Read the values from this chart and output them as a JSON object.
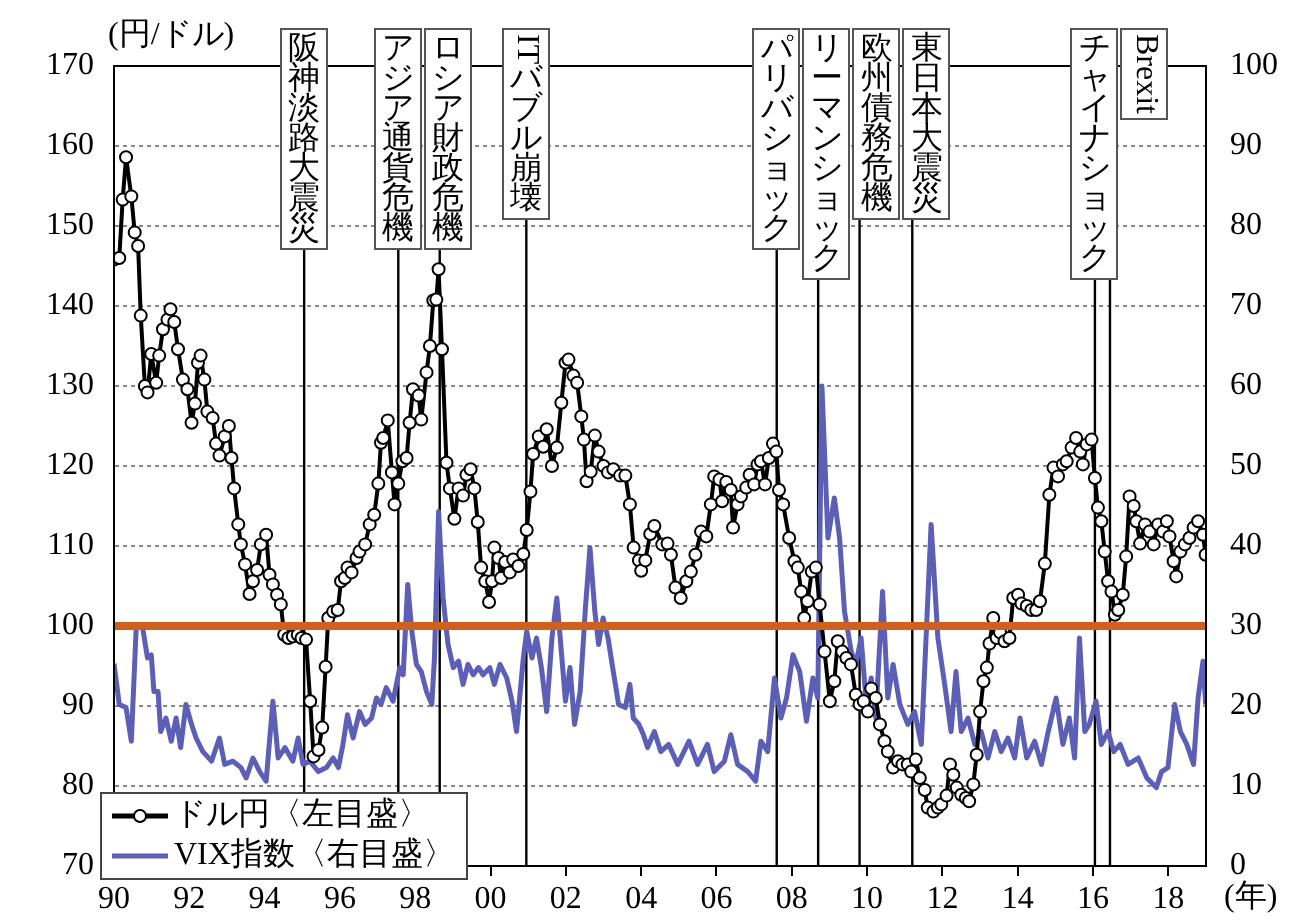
{
  "chart_data": {
    "type": "line",
    "xlabel": "(年)",
    "ylabel": "(円/ドル)",
    "xlim": [
      1990,
      2019
    ],
    "xticks": [
      {
        "value": 1990,
        "label": "90"
      },
      {
        "value": 1992,
        "label": "92"
      },
      {
        "value": 1994,
        "label": "94"
      },
      {
        "value": 1996,
        "label": "96"
      },
      {
        "value": 1998,
        "label": "98"
      },
      {
        "value": 2000,
        "label": "00"
      },
      {
        "value": 2002,
        "label": "02"
      },
      {
        "value": 2004,
        "label": "04"
      },
      {
        "value": 2006,
        "label": "06"
      },
      {
        "value": 2008,
        "label": "08"
      },
      {
        "value": 2010,
        "label": "10"
      },
      {
        "value": 2012,
        "label": "12"
      },
      {
        "value": 2014,
        "label": "14"
      },
      {
        "value": 2016,
        "label": "16"
      },
      {
        "value": 2018,
        "label": "18"
      }
    ],
    "ylim": [
      70,
      170
    ],
    "yticks": [
      70,
      80,
      90,
      100,
      110,
      120,
      130,
      140,
      150,
      160,
      170
    ],
    "y2lim": [
      0,
      100
    ],
    "y2ticks": [
      0,
      10,
      20,
      30,
      40,
      50,
      60,
      70,
      80,
      90,
      100
    ],
    "grid": "y",
    "legend": "bottom left",
    "series": [
      {
        "name": "ドル円〈左目盛〉",
        "color": "#000000",
        "marker": "circle",
        "x": [
          1990.0,
          1990.14,
          1990.23,
          1990.32,
          1990.46,
          1990.55,
          1990.64,
          1990.71,
          1990.82,
          1990.89,
          1990.99,
          1991.12,
          1991.2,
          1991.3,
          1991.42,
          1991.5,
          1991.6,
          1991.7,
          1991.83,
          1991.95,
          1992.06,
          1992.15,
          1992.23,
          1992.3,
          1992.4,
          1992.48,
          1992.62,
          1992.71,
          1992.8,
          1992.94,
          1993.05,
          1993.12,
          1993.19,
          1993.3,
          1993.37,
          1993.48,
          1993.6,
          1993.69,
          1993.8,
          1993.9,
          1994.04,
          1994.13,
          1994.22,
          1994.33,
          1994.43,
          1994.52,
          1994.63,
          1994.75,
          1994.88,
          1994.98,
          1995.1,
          1995.21,
          1995.3,
          1995.43,
          1995.53,
          1995.62,
          1995.69,
          1995.82,
          1995.94,
          1996.03,
          1996.13,
          1996.2,
          1996.31,
          1996.44,
          1996.52,
          1996.67,
          1996.79,
          1996.91,
          1997.02,
          1997.09,
          1997.15,
          1997.27,
          1997.38,
          1997.45,
          1997.55,
          1997.66,
          1997.77,
          1997.85,
          1997.94,
          1998.09,
          1998.16,
          1998.3,
          1998.39,
          1998.48,
          1998.56,
          1998.62,
          1998.71,
          1998.83,
          1998.92,
          1999.04,
          1999.15,
          1999.27,
          1999.36,
          1999.47,
          1999.57,
          1999.66,
          1999.75,
          1999.86,
          1999.96,
          2000.04,
          2000.1,
          2000.21,
          2000.28,
          2000.39,
          2000.51,
          2000.6,
          2000.74,
          2000.87,
          2000.96,
          2001.06,
          2001.13,
          2001.28,
          2001.4,
          2001.49,
          2001.63,
          2001.76,
          2001.88,
          2001.99,
          2002.07,
          2002.2,
          2002.3,
          2002.41,
          2002.48,
          2002.55,
          2002.66,
          2002.77,
          2002.87,
          2003.0,
          2003.12,
          2003.26,
          2003.44,
          2003.58,
          2003.7,
          2003.8,
          2003.94,
          2004.0,
          2004.11,
          2004.24,
          2004.35,
          2004.56,
          2004.7,
          2004.79,
          2004.91,
          2005.05,
          2005.2,
          2005.32,
          2005.44,
          2005.59,
          2005.73,
          2005.85,
          2005.94,
          2006.08,
          2006.15,
          2006.26,
          2006.38,
          2006.44,
          2006.56,
          2006.65,
          2006.79,
          2006.88,
          2007.0,
          2007.09,
          2007.18,
          2007.29,
          2007.39,
          2007.5,
          2007.59,
          2007.66,
          2007.77,
          2007.93,
          2008.07,
          2008.16,
          2008.25,
          2008.33,
          2008.42,
          2008.53,
          2008.64,
          2008.74,
          2008.87,
          2009.01,
          2009.13,
          2009.22,
          2009.34,
          2009.45,
          2009.57,
          2009.7,
          2009.8,
          2009.91,
          2010.02,
          2010.11,
          2010.23,
          2010.34,
          2010.46,
          2010.55,
          2010.69,
          2010.82,
          2010.94,
          2011.08,
          2011.17,
          2011.29,
          2011.4,
          2011.53,
          2011.61,
          2011.76,
          2011.88,
          2011.97,
          2012.11,
          2012.2,
          2012.29,
          2012.38,
          2012.5,
          2012.62,
          2012.71,
          2012.82,
          2012.91,
          2013.0,
          2013.09,
          2013.18,
          2013.25,
          2013.35,
          2013.44,
          2013.53,
          2013.65,
          2013.78,
          2013.88,
          2014.01,
          2014.1,
          2014.24,
          2014.36,
          2014.49,
          2014.59,
          2014.72,
          2014.84,
          2014.95,
          2015.07,
          2015.2,
          2015.3,
          2015.43,
          2015.55,
          2015.66,
          2015.73,
          2015.83,
          2015.96,
          2016.05,
          2016.13,
          2016.22,
          2016.31,
          2016.4,
          2016.49,
          2016.58,
          2016.67,
          2016.79,
          2016.88,
          2016.97,
          2017.08,
          2017.15,
          2017.25,
          2017.38,
          2017.5,
          2017.61,
          2017.73,
          2017.86,
          2017.96,
          2018.03,
          2018.14,
          2018.21,
          2018.32,
          2018.44,
          2018.56,
          2018.67,
          2018.79,
          2018.92,
          2018.99
        ],
        "values": [
          145.8,
          146,
          153.3,
          158.6,
          153.7,
          149.2,
          147.5,
          138.8,
          130,
          129.2,
          134,
          130.4,
          133.8,
          137.1,
          138.3,
          139.6,
          138,
          134.6,
          130.8,
          129.6,
          125.4,
          127.8,
          132.9,
          133.8,
          130.8,
          126.8,
          126,
          122.8,
          121.3,
          123.7,
          125,
          121,
          117.2,
          112.7,
          110.2,
          107.7,
          104,
          105.6,
          107,
          110.2,
          111.4,
          106.4,
          105.2,
          103.9,
          102.7,
          98.9,
          98.5,
          98.7,
          98.9,
          98.5,
          98.3,
          90.6,
          83.7,
          84.5,
          87.3,
          94.9,
          101,
          101.8,
          102,
          105.6,
          106,
          107.3,
          106.7,
          108.5,
          109.3,
          110.2,
          112.7,
          113.9,
          117.8,
          122.9,
          123.5,
          125.7,
          119.2,
          115.2,
          117.8,
          120.6,
          121,
          125.4,
          129.6,
          128.8,
          125.8,
          131.7,
          135,
          140.7,
          140.8,
          144.6,
          134.6,
          120.4,
          117.2,
          113.4,
          117.2,
          116.3,
          118.9,
          119.6,
          117.2,
          113,
          107.3,
          105.6,
          103,
          105.6,
          109.8,
          108.5,
          106,
          108,
          106.7,
          108.3,
          107.5,
          109,
          112,
          116.8,
          121.5,
          123.7,
          122.4,
          124.6,
          120,
          122.3,
          127.9,
          132.9,
          133.3,
          131.3,
          130.4,
          126.2,
          123.3,
          118.1,
          119.3,
          123.8,
          121.8,
          120,
          119.2,
          119.6,
          118.8,
          118.8,
          115.2,
          109.8,
          108.2,
          106.9,
          108.2,
          111.5,
          112.5,
          110.2,
          110.3,
          108.9,
          104.8,
          103.5,
          105.6,
          106.8,
          108.9,
          111.8,
          111.2,
          115.2,
          118.7,
          118.3,
          115.6,
          118,
          117,
          112.3,
          115.2,
          116.2,
          117.3,
          118.9,
          117.7,
          120.2,
          120.6,
          117.7,
          121,
          122.8,
          121.8,
          117,
          115.2,
          111,
          108.1,
          107.3,
          104.3,
          101,
          103.1,
          106.8,
          107.3,
          102.7,
          96.8,
          90.6,
          93.1,
          98.1,
          96.8,
          96,
          95.2,
          91.4,
          90.2,
          90.6,
          89.3,
          92.2,
          91,
          87.7,
          85.6,
          84.3,
          82.3,
          83.1,
          82.7,
          82.7,
          81.8,
          83.3,
          81,
          79.5,
          77.3,
          76.8,
          77.3,
          77.7,
          78.8,
          82.7,
          81.4,
          79.8,
          78.9,
          78.5,
          78.1,
          80.2,
          83.9,
          89.3,
          93.1,
          94.8,
          97.8,
          101,
          98.5,
          99.2,
          98.1,
          98.5,
          103.5,
          103.9,
          102.8,
          102.5,
          102,
          102,
          103.1,
          107.8,
          116.4,
          119.8,
          118.7,
          120.2,
          120.6,
          122.3,
          123.5,
          121.8,
          120.2,
          122.7,
          123.3,
          118.5,
          114.8,
          113.1,
          109.3,
          105.6,
          104.3,
          101.4,
          102,
          103.9,
          108.7,
          116.2,
          115,
          113.1,
          110.3,
          112.7,
          111.8,
          110.2,
          112.7,
          111.8,
          113.1,
          111.2,
          108.1,
          106.2,
          109.3,
          110.2,
          111,
          112.3,
          113.1,
          111.4,
          108.9
        ]
      },
      {
        "name": "VIX指数〈右目盛〉",
        "color": "#5b5fb5",
        "marker": "none",
        "axis": "y2",
        "x": [
          1990.0,
          1990.14,
          1990.32,
          1990.46,
          1990.59,
          1990.76,
          1990.89,
          1990.99,
          1991.06,
          1991.17,
          1991.24,
          1991.38,
          1991.52,
          1991.65,
          1991.77,
          1991.91,
          1992.06,
          1992.18,
          1992.36,
          1992.59,
          1992.8,
          1992.94,
          1993.16,
          1993.37,
          1993.51,
          1993.69,
          1993.87,
          1994.04,
          1994.22,
          1994.36,
          1994.54,
          1994.75,
          1994.89,
          1995.02,
          1995.2,
          1995.43,
          1995.64,
          1995.82,
          1995.96,
          1996.08,
          1996.2,
          1996.35,
          1996.52,
          1996.67,
          1996.84,
          1996.97,
          1997.09,
          1997.23,
          1997.41,
          1997.59,
          1997.68,
          1997.8,
          1997.91,
          1998.03,
          1998.16,
          1998.3,
          1998.44,
          1998.51,
          1998.62,
          1998.74,
          1998.87,
          1999.01,
          1999.15,
          1999.27,
          1999.4,
          1999.54,
          1999.68,
          1999.8,
          1999.98,
          2000.1,
          2000.25,
          2000.43,
          2000.57,
          2000.69,
          2000.87,
          2000.96,
          2001.1,
          2001.22,
          2001.35,
          2001.49,
          2001.63,
          2001.76,
          2001.85,
          2001.99,
          2002.11,
          2002.23,
          2002.38,
          2002.52,
          2002.64,
          2002.77,
          2002.87,
          2002.99,
          2003.12,
          2003.26,
          2003.4,
          2003.58,
          2003.7,
          2003.79,
          2003.94,
          2004.06,
          2004.17,
          2004.35,
          2004.52,
          2004.73,
          2004.97,
          2005.27,
          2005.5,
          2005.76,
          2005.94,
          2006.21,
          2006.38,
          2006.56,
          2006.83,
          2007.04,
          2007.18,
          2007.36,
          2007.54,
          2007.71,
          2007.86,
          2008.03,
          2008.21,
          2008.39,
          2008.56,
          2008.69,
          2008.8,
          2008.96,
          2009.13,
          2009.27,
          2009.4,
          2009.58,
          2009.7,
          2009.84,
          2009.98,
          2010.11,
          2010.23,
          2010.41,
          2010.55,
          2010.69,
          2010.87,
          2011.08,
          2011.26,
          2011.44,
          2011.7,
          2011.88,
          2012.06,
          2012.23,
          2012.36,
          2012.5,
          2012.68,
          2012.86,
          2013.03,
          2013.21,
          2013.39,
          2013.56,
          2013.74,
          2013.92,
          2014.06,
          2014.24,
          2014.45,
          2014.63,
          2014.81,
          2015.02,
          2015.2,
          2015.37,
          2015.51,
          2015.64,
          2015.78,
          2015.9,
          2016.08,
          2016.22,
          2016.4,
          2016.55,
          2016.72,
          2016.93,
          2017.2,
          2017.43,
          2017.68,
          2017.82,
          2017.99,
          2018.17,
          2018.32,
          2018.49,
          2018.67,
          2018.79,
          2018.92,
          2018.99
        ],
        "values": [
          25.3,
          20.2,
          19.8,
          15.6,
          29.8,
          29.8,
          26,
          26.4,
          21.8,
          21.8,
          16.8,
          18.5,
          15.6,
          18.5,
          14.8,
          20.2,
          17.7,
          16,
          14.3,
          13.1,
          16,
          12.7,
          13.1,
          12.3,
          11,
          13.5,
          11.8,
          10.6,
          20.6,
          13.5,
          14.8,
          13.1,
          16,
          12.7,
          13.1,
          11.8,
          12.3,
          13.5,
          12.3,
          15.2,
          18.9,
          16,
          19.3,
          17.7,
          18.5,
          21,
          20.2,
          22.3,
          20.6,
          24.8,
          23.9,
          35.2,
          29.3,
          25.2,
          24.3,
          21.8,
          20.2,
          26,
          44.3,
          33.5,
          27.7,
          24.8,
          25.6,
          22.7,
          25.2,
          23.9,
          24.8,
          23.9,
          24.8,
          22.7,
          25.2,
          23.5,
          20.6,
          16.8,
          26,
          29.3,
          26,
          28.5,
          24.8,
          19.3,
          28.5,
          33.5,
          28.5,
          20.6,
          24.8,
          17.7,
          21.8,
          32.3,
          39.8,
          31.8,
          27.7,
          31,
          28.5,
          24.3,
          20.2,
          19.8,
          22.7,
          18.5,
          17.7,
          16.4,
          14.8,
          16.8,
          14.3,
          15.2,
          12.7,
          15.6,
          12.7,
          15.2,
          11.8,
          13.1,
          16.4,
          12.7,
          11.8,
          10.6,
          15.6,
          14.3,
          23.5,
          18.5,
          21,
          26.4,
          24.3,
          18.1,
          23.5,
          21,
          60,
          41,
          46,
          41,
          31.8,
          26.8,
          25.2,
          28.5,
          20.2,
          23.5,
          18.5,
          34.3,
          21,
          25.2,
          20.2,
          17.7,
          19.3,
          15.2,
          42.7,
          28.5,
          22.7,
          16.8,
          24.3,
          16.8,
          18.5,
          15.2,
          16.8,
          13.5,
          16.8,
          14.3,
          16,
          13.5,
          18.5,
          13.5,
          15.6,
          12.7,
          16.8,
          21,
          15.2,
          18.5,
          13.5,
          28.5,
          16.8,
          17.7,
          20.6,
          15.2,
          16.8,
          14.3,
          15.2,
          12.7,
          13.5,
          11,
          9.8,
          11.8,
          12.3,
          20.2,
          16.8,
          15.2,
          12.7,
          21,
          25.6,
          20.2
        ]
      }
    ],
    "ref_lines": [
      {
        "axis": "y",
        "value": 100,
        "color": "#d0601e"
      },
      {
        "axis": "x",
        "value": 1995.05,
        "label": "阪神淡路大震災",
        "color": "#000000"
      },
      {
        "axis": "x",
        "value": 1997.55,
        "label": "アジア通貨危機",
        "color": "#000000"
      },
      {
        "axis": "x",
        "value": 1998.65,
        "label": "ロシア財政危機",
        "color": "#000000"
      },
      {
        "axis": "x",
        "value": 2000.95,
        "label": "ITバブル崩壊",
        "color": "#000000"
      },
      {
        "axis": "x",
        "value": 2007.6,
        "label": "パリバショック",
        "color": "#000000"
      },
      {
        "axis": "x",
        "value": 2008.7,
        "label": "リーマンショック",
        "color": "#000000"
      },
      {
        "axis": "x",
        "value": 2009.8,
        "label": "欧州債務危機",
        "color": "#000000"
      },
      {
        "axis": "x",
        "value": 2011.2,
        "label": "東日本大震災",
        "color": "#000000"
      },
      {
        "axis": "x",
        "value": 2016.05,
        "label": "チャイナショック",
        "color": "#000000"
      },
      {
        "axis": "x",
        "value": 2016.45,
        "label": "Brexit",
        "color": "#000000"
      }
    ]
  }
}
